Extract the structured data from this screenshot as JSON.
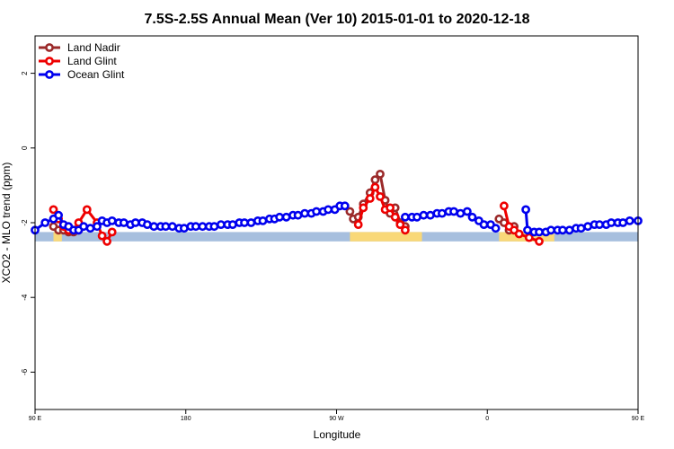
{
  "chart_data": {
    "type": "line",
    "title": "7.5S-2.5S Annual Mean (Ver 10)   2015-01-01 to 2020-12-18",
    "xlabel": "Longitude",
    "ylabel": "XCO2 - MLO trend (ppm)",
    "xlim": [
      90,
      450
    ],
    "ylim": [
      -7,
      3
    ],
    "y_ticks": [
      2,
      0,
      -2,
      -4,
      -6
    ],
    "x_ticks": [
      {
        "value": 90,
        "label": "90 E"
      },
      {
        "value": 180,
        "label": "180"
      },
      {
        "value": 270,
        "label": "90 W"
      },
      {
        "value": 360,
        "label": "0"
      },
      {
        "value": 450,
        "label": "90 E"
      },
      {
        "value": 540,
        "label": "180"
      }
    ],
    "grid": false,
    "legend_position": "top-left",
    "surface_bands": [
      {
        "color": "#a7bfde",
        "from": 90,
        "to": 450
      },
      {
        "color": "#f9d878",
        "from": 101,
        "to": 106
      },
      {
        "color": "#f9d878",
        "from": 278,
        "to": 321
      },
      {
        "color": "#f9d878",
        "from": 367,
        "to": 400
      },
      {
        "color": "#f9d878",
        "from": 378,
        "to": 391
      },
      {
        "color": "#f9d878",
        "from": 463,
        "to": 470
      }
    ],
    "series": [
      {
        "name": "Land Nadir",
        "color": "#9b2a2a",
        "segments": [
          [
            [
              101,
              -2.1
            ],
            [
              104,
              -2.2
            ],
            [
              107,
              -2.2
            ],
            [
              110,
              -2.25
            ],
            [
              113,
              -2.25
            ],
            [
              116,
              -2.2
            ]
          ],
          [
            [
              278,
              -1.7
            ],
            [
              280,
              -1.9
            ],
            [
              283,
              -1.85
            ],
            [
              286,
              -1.5
            ],
            [
              290,
              -1.2
            ],
            [
              293,
              -0.85
            ],
            [
              296,
              -0.7
            ],
            [
              299,
              -1.4
            ],
            [
              302,
              -1.75
            ],
            [
              305,
              -1.6
            ],
            [
              308,
              -2.0
            ],
            [
              311,
              -2.1
            ]
          ],
          [
            [
              367,
              -1.9
            ],
            [
              370,
              -2.0
            ],
            [
              373,
              -2.2
            ],
            [
              376,
              -2.1
            ]
          ],
          [
            [
              463,
              -2.1
            ],
            [
              466,
              -2.2
            ],
            [
              469,
              -2.25
            ],
            [
              472,
              -2.25
            ],
            [
              475,
              -2.2
            ]
          ]
        ]
      },
      {
        "name": "Land Glint",
        "color": "#ee0000",
        "segments": [
          [
            [
              101,
              -1.65
            ],
            [
              104,
              -1.9
            ],
            [
              107,
              -2.1
            ],
            [
              110,
              -2.2
            ],
            [
              113,
              -2.2
            ],
            [
              116,
              -2.0
            ],
            [
              121,
              -1.65
            ],
            [
              127,
              -2.0
            ],
            [
              130,
              -2.35
            ],
            [
              133,
              -2.5
            ],
            [
              136,
              -2.25
            ]
          ],
          [
            [
              283,
              -2.05
            ],
            [
              286,
              -1.6
            ],
            [
              290,
              -1.35
            ],
            [
              293,
              -1.05
            ],
            [
              296,
              -1.3
            ],
            [
              299,
              -1.65
            ],
            [
              302,
              -1.6
            ],
            [
              305,
              -1.85
            ],
            [
              308,
              -2.05
            ],
            [
              311,
              -2.2
            ]
          ],
          [
            [
              370,
              -1.55
            ],
            [
              373,
              -2.1
            ],
            [
              376,
              -2.2
            ],
            [
              379,
              -2.3
            ],
            [
              385,
              -2.4
            ],
            [
              391,
              -2.5
            ]
          ],
          [
            [
              463,
              -1.65
            ],
            [
              466,
              -2.05
            ],
            [
              469,
              -2.15
            ],
            [
              472,
              -2.2
            ],
            [
              475,
              -2.0
            ],
            [
              481,
              -1.65
            ],
            [
              487,
              -2.05
            ],
            [
              490,
              -2.35
            ],
            [
              493,
              -2.5
            ],
            [
              496,
              -2.25
            ]
          ]
        ]
      },
      {
        "name": "Ocean Glint",
        "color": "#0000ee",
        "segments": [
          [
            [
              90,
              -2.2
            ],
            [
              96,
              -2.0
            ],
            [
              101,
              -1.9
            ],
            [
              104,
              -1.8
            ],
            [
              107,
              -2.05
            ],
            [
              110,
              -2.1
            ],
            [
              113,
              -2.2
            ],
            [
              116,
              -2.2
            ],
            [
              119,
              -2.1
            ],
            [
              123,
              -2.15
            ],
            [
              127,
              -2.1
            ],
            [
              130,
              -1.95
            ],
            [
              133,
              -2.0
            ],
            [
              136,
              -1.95
            ],
            [
              140,
              -2.0
            ],
            [
              143,
              -2.0
            ],
            [
              147,
              -2.05
            ],
            [
              150,
              -2.0
            ],
            [
              154,
              -2.0
            ],
            [
              157,
              -2.05
            ],
            [
              161,
              -2.1
            ],
            [
              165,
              -2.1
            ],
            [
              168,
              -2.1
            ],
            [
              172,
              -2.1
            ],
            [
              176,
              -2.15
            ],
            [
              179,
              -2.15
            ],
            [
              183,
              -2.1
            ],
            [
              186,
              -2.1
            ],
            [
              190,
              -2.1
            ],
            [
              194,
              -2.1
            ],
            [
              197,
              -2.1
            ],
            [
              201,
              -2.05
            ],
            [
              205,
              -2.05
            ],
            [
              208,
              -2.05
            ],
            [
              212,
              -2.0
            ],
            [
              215,
              -2.0
            ],
            [
              219,
              -2.0
            ],
            [
              223,
              -1.95
            ],
            [
              226,
              -1.95
            ],
            [
              230,
              -1.9
            ],
            [
              233,
              -1.9
            ],
            [
              236,
              -1.85
            ],
            [
              240,
              -1.85
            ],
            [
              244,
              -1.8
            ],
            [
              247,
              -1.8
            ],
            [
              251,
              -1.75
            ],
            [
              255,
              -1.75
            ],
            [
              258,
              -1.7
            ],
            [
              262,
              -1.7
            ],
            [
              265,
              -1.65
            ],
            [
              269,
              -1.65
            ],
            [
              272,
              -1.55
            ],
            [
              275,
              -1.55
            ]
          ],
          [
            [
              311,
              -1.85
            ],
            [
              315,
              -1.85
            ],
            [
              318,
              -1.85
            ],
            [
              322,
              -1.8
            ],
            [
              326,
              -1.8
            ],
            [
              330,
              -1.75
            ],
            [
              333,
              -1.75
            ],
            [
              337,
              -1.7
            ],
            [
              340,
              -1.7
            ],
            [
              344,
              -1.75
            ],
            [
              348,
              -1.7
            ],
            [
              351,
              -1.85
            ],
            [
              355,
              -1.95
            ],
            [
              358,
              -2.05
            ],
            [
              362,
              -2.05
            ],
            [
              365,
              -2.15
            ]
          ],
          [
            [
              383,
              -1.65
            ],
            [
              384,
              -2.2
            ],
            [
              388,
              -2.25
            ],
            [
              391,
              -2.25
            ],
            [
              395,
              -2.25
            ],
            [
              398,
              -2.2
            ],
            [
              402,
              -2.2
            ],
            [
              405,
              -2.2
            ],
            [
              409,
              -2.2
            ],
            [
              413,
              -2.15
            ],
            [
              416,
              -2.15
            ],
            [
              420,
              -2.1
            ],
            [
              424,
              -2.05
            ],
            [
              427,
              -2.05
            ],
            [
              431,
              -2.05
            ],
            [
              434,
              -2.0
            ],
            [
              438,
              -2.0
            ],
            [
              441,
              -2.0
            ],
            [
              445,
              -1.95
            ],
            [
              450,
              -1.95
            ],
            [
              454,
              -1.9
            ]
          ]
        ]
      }
    ]
  }
}
